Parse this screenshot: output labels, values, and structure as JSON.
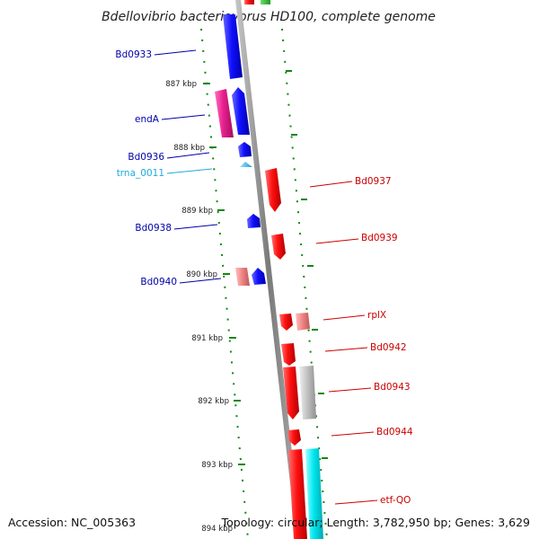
{
  "title": "Bdellovibrio bacteriovorus HD100, complete genome",
  "footer": {
    "accession": "Accession: NC_005363",
    "topology": "Topology: circular; Length: 3,782,950 bp; Genes: 3,629"
  },
  "ticks": [
    "887 kbp",
    "888 kbp",
    "889 kbp",
    "890 kbp",
    "891 kbp",
    "892 kbp",
    "893 kbp",
    "894 kbp"
  ],
  "genes_left": [
    {
      "id": "Bd0933",
      "color": "#0000cc"
    },
    {
      "id": "endA",
      "color": "#0000cc"
    },
    {
      "id": "Bd0936",
      "color": "#0000cc"
    },
    {
      "id": "trna_0011",
      "color": "#22aadd"
    },
    {
      "id": "Bd0938",
      "color": "#0000cc"
    },
    {
      "id": "Bd0940",
      "color": "#0000cc"
    }
  ],
  "genes_right": [
    {
      "id": "Bd0937",
      "color": "#cc0000"
    },
    {
      "id": "Bd0939",
      "color": "#cc0000"
    },
    {
      "id": "rplX",
      "color": "#cc0000"
    },
    {
      "id": "Bd0942",
      "color": "#cc0000"
    },
    {
      "id": "Bd0943",
      "color": "#cc0000"
    },
    {
      "id": "Bd0944",
      "color": "#cc0000"
    },
    {
      "id": "etf-QO",
      "color": "#cc0000"
    }
  ],
  "colors": {
    "minus_strand": "#0000ee",
    "plus_strand": "#ee0000",
    "rna": "#33bbee",
    "pseudo_pink": "#e0208a",
    "light_red": "#f08080",
    "gray": "#c0c0c0",
    "cyan": "#00e5ee",
    "green": "#22aa22",
    "tick_green": "#118811",
    "backbone": "#808080"
  }
}
